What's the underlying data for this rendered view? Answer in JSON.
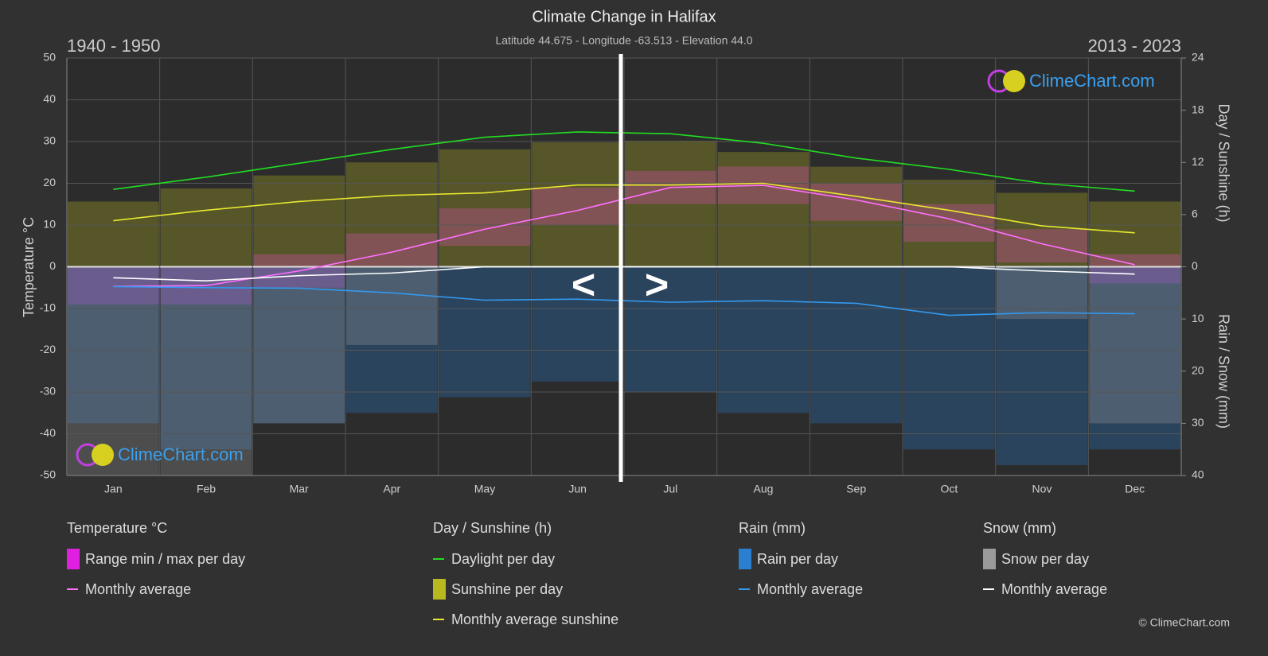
{
  "chart_data": {
    "type": "climate",
    "title": "Climate Change in Halifax",
    "subtitle": "Latitude 44.675 - Longitude -63.513 - Elevation 44.0",
    "left_period": "1940 - 1950",
    "right_period": "2013 - 2023",
    "y_label": "Temperature °C",
    "y2_label": "Day / Sunshine (h)",
    "y3_label": "Rain / Snow (mm)",
    "nav_prev": "<",
    "nav_next": ">",
    "logo_text": "ClimeChart.com",
    "copyright": "© ClimeChart.com",
    "grid": true,
    "categories": [
      "Jan",
      "Feb",
      "Mar",
      "Apr",
      "May",
      "Jun",
      "Jul",
      "Aug",
      "Sep",
      "Oct",
      "Nov",
      "Dec"
    ],
    "ylim": [
      -50,
      50
    ],
    "yticks": [
      -50,
      -40,
      -30,
      -20,
      -10,
      0,
      10,
      20,
      30,
      40,
      50
    ],
    "y2lim": [
      0,
      24
    ],
    "y2ticks": [
      0,
      6,
      12,
      18,
      24
    ],
    "y3lim": [
      0,
      40
    ],
    "y3ticks": [
      10,
      20,
      30,
      40
    ],
    "groups": [
      {
        "title": "Temperature °C",
        "series": [
          {
            "name": "Range min / max per day",
            "kind": "range",
            "axis": "y",
            "color": "#e020e0",
            "min": [
              -9,
              -9,
              -5,
              0,
              5,
              10,
              15,
              15,
              11,
              6,
              1,
              -4
            ],
            "max": [
              0,
              0,
              3,
              8,
              14,
              19,
              23,
              24,
              20,
              15,
              9,
              3
            ]
          },
          {
            "name": "Monthly average",
            "kind": "line",
            "axis": "y",
            "color": "#ff70ff",
            "values": [
              -4.7,
              -4.5,
              -1,
              3.5,
              9,
              13.5,
              19,
              19.5,
              16,
              11.5,
              5.5,
              0.5
            ]
          }
        ]
      },
      {
        "title": "Day / Sunshine (h)",
        "series": [
          {
            "name": "Daylight per day",
            "kind": "line",
            "axis": "y2",
            "color": "#22dd22",
            "values": [
              8.9,
              10.3,
              11.9,
              13.5,
              14.9,
              15.5,
              15.3,
              14.2,
              12.5,
              11.2,
              9.6,
              8.7
            ]
          },
          {
            "name": "Sunshine per day",
            "kind": "bars",
            "axis": "y2",
            "color": "#b8b820",
            "values": [
              7.5,
              9,
              10.5,
              12,
              13.5,
              14.3,
              14.5,
              13.2,
              11.5,
              10,
              8.5,
              7.5
            ]
          },
          {
            "name": "Monthly average sunshine",
            "kind": "line",
            "axis": "y2",
            "color": "#e8e830",
            "values": [
              5.3,
              6.5,
              7.5,
              8.2,
              8.5,
              9.4,
              9.4,
              9.6,
              8.1,
              6.5,
              4.7,
              3.9
            ]
          }
        ]
      },
      {
        "title": "Rain (mm)",
        "series": [
          {
            "name": "Rain per day",
            "kind": "bars",
            "axis": "y3",
            "color": "#2a7fd0",
            "values": [
              30,
              35,
              30,
              28,
              25,
              22,
              24,
              28,
              30,
              35,
              38,
              35
            ]
          },
          {
            "name": "Monthly average",
            "kind": "line",
            "axis": "y3",
            "color": "#3399ee",
            "values": [
              3.8,
              4.0,
              4.1,
              5.0,
              6.4,
              6.2,
              6.8,
              6.5,
              7.0,
              9.3,
              8.8,
              9.0
            ]
          }
        ]
      },
      {
        "title": "Snow (mm)",
        "series": [
          {
            "name": "Snow per day",
            "kind": "bars",
            "axis": "y3",
            "color": "#9a9a9a",
            "values": [
              40,
              40,
              30,
              15,
              0,
              0,
              0,
              0,
              0,
              0,
              10,
              30
            ]
          },
          {
            "name": "Monthly average",
            "kind": "line",
            "axis": "y3",
            "color": "#ffffff",
            "values": [
              2.1,
              2.7,
              1.7,
              1.2,
              0,
              0,
              0,
              0,
              0,
              0,
              0.8,
              1.4
            ]
          }
        ]
      }
    ]
  }
}
